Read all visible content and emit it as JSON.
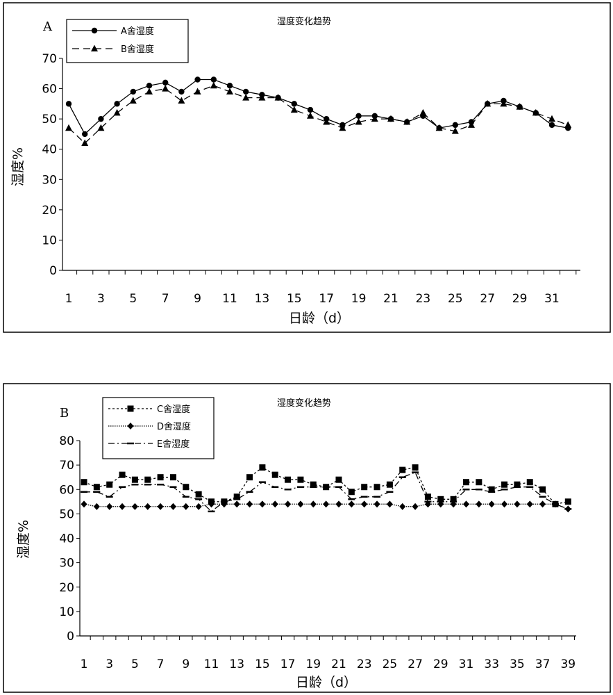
{
  "chart_data": [
    {
      "type": "line",
      "panel_label": "A",
      "title": "湿度变化趋势",
      "xlabel": "日龄（d）",
      "ylabel": "湿度%",
      "xlim": [
        1,
        32
      ],
      "ylim": [
        0,
        70
      ],
      "yticks": [
        0,
        10,
        20,
        30,
        40,
        50,
        60,
        70
      ],
      "xtick_labels": [
        "1",
        "3",
        "5",
        "7",
        "9",
        "11",
        "13",
        "15",
        "17",
        "19",
        "21",
        "23",
        "25",
        "27",
        "29",
        "31"
      ],
      "legend_position": "top-left",
      "x": [
        1,
        2,
        3,
        4,
        5,
        6,
        7,
        8,
        9,
        10,
        11,
        12,
        13,
        14,
        15,
        16,
        17,
        18,
        19,
        20,
        21,
        22,
        23,
        24,
        25,
        26,
        27,
        28,
        29,
        30,
        31,
        32
      ],
      "series": [
        {
          "name": "A舍湿度",
          "line_style": "solid",
          "marker": "circle",
          "values": [
            55,
            45,
            50,
            55,
            59,
            61,
            62,
            59,
            63,
            63,
            61,
            59,
            58,
            57,
            55,
            53,
            50,
            48,
            51,
            51,
            50,
            49,
            51,
            47,
            48,
            49,
            55,
            56,
            54,
            52,
            48,
            47
          ]
        },
        {
          "name": "B舍湿度",
          "line_style": "dashed",
          "marker": "triangle",
          "values": [
            47,
            42,
            47,
            52,
            56,
            59,
            60,
            56,
            59,
            61,
            59,
            57,
            57,
            57,
            53,
            51,
            49,
            47,
            49,
            50,
            50,
            49,
            52,
            47,
            46,
            48,
            55,
            55,
            54,
            52,
            50,
            48
          ]
        }
      ]
    },
    {
      "type": "line",
      "panel_label": "B",
      "title": "湿度变化趋势",
      "xlabel": "日龄（d）",
      "ylabel": "湿度%",
      "xlim": [
        1,
        39
      ],
      "ylim": [
        0,
        80
      ],
      "yticks": [
        0,
        10,
        20,
        30,
        40,
        50,
        60,
        70,
        80
      ],
      "xtick_labels": [
        "1",
        "3",
        "5",
        "7",
        "9",
        "11",
        "13",
        "15",
        "17",
        "19",
        "21",
        "23",
        "25",
        "27",
        "29",
        "31",
        "33",
        "35",
        "37",
        "39"
      ],
      "legend_position": "top-left",
      "x": [
        1,
        2,
        3,
        4,
        5,
        6,
        7,
        8,
        9,
        10,
        11,
        12,
        13,
        14,
        15,
        16,
        17,
        18,
        19,
        20,
        21,
        22,
        23,
        24,
        25,
        26,
        27,
        28,
        29,
        30,
        31,
        32,
        33,
        34,
        35,
        36,
        37,
        38,
        39
      ],
      "series": [
        {
          "name": "C舍湿度",
          "line_style": "dotted",
          "marker": "square",
          "values": [
            63,
            61,
            62,
            66,
            64,
            64,
            65,
            65,
            61,
            58,
            55,
            55,
            57,
            65,
            69,
            66,
            64,
            64,
            62,
            61,
            64,
            59,
            61,
            61,
            62,
            68,
            69,
            57,
            56,
            56,
            63,
            63,
            60,
            62,
            62,
            63,
            60,
            54,
            55
          ]
        },
        {
          "name": "D舍湿度",
          "line_style": "dense-dotted",
          "marker": "diamond",
          "values": [
            54,
            53,
            53,
            53,
            53,
            53,
            53,
            53,
            53,
            53,
            54,
            54,
            54,
            54,
            54,
            54,
            54,
            54,
            54,
            54,
            54,
            54,
            54,
            54,
            54,
            53,
            53,
            54,
            54,
            54,
            54,
            54,
            54,
            54,
            54,
            54,
            54,
            54,
            52
          ]
        },
        {
          "name": "E舍湿度",
          "line_style": "dash-dot",
          "marker": "dash",
          "values": [
            59,
            59,
            57,
            61,
            62,
            62,
            62,
            61,
            57,
            56,
            51,
            55,
            56,
            59,
            63,
            61,
            60,
            61,
            61,
            61,
            61,
            56,
            57,
            57,
            59,
            65,
            67,
            55,
            55,
            55,
            60,
            60,
            59,
            60,
            61,
            61,
            57,
            54,
            52
          ]
        }
      ]
    }
  ]
}
